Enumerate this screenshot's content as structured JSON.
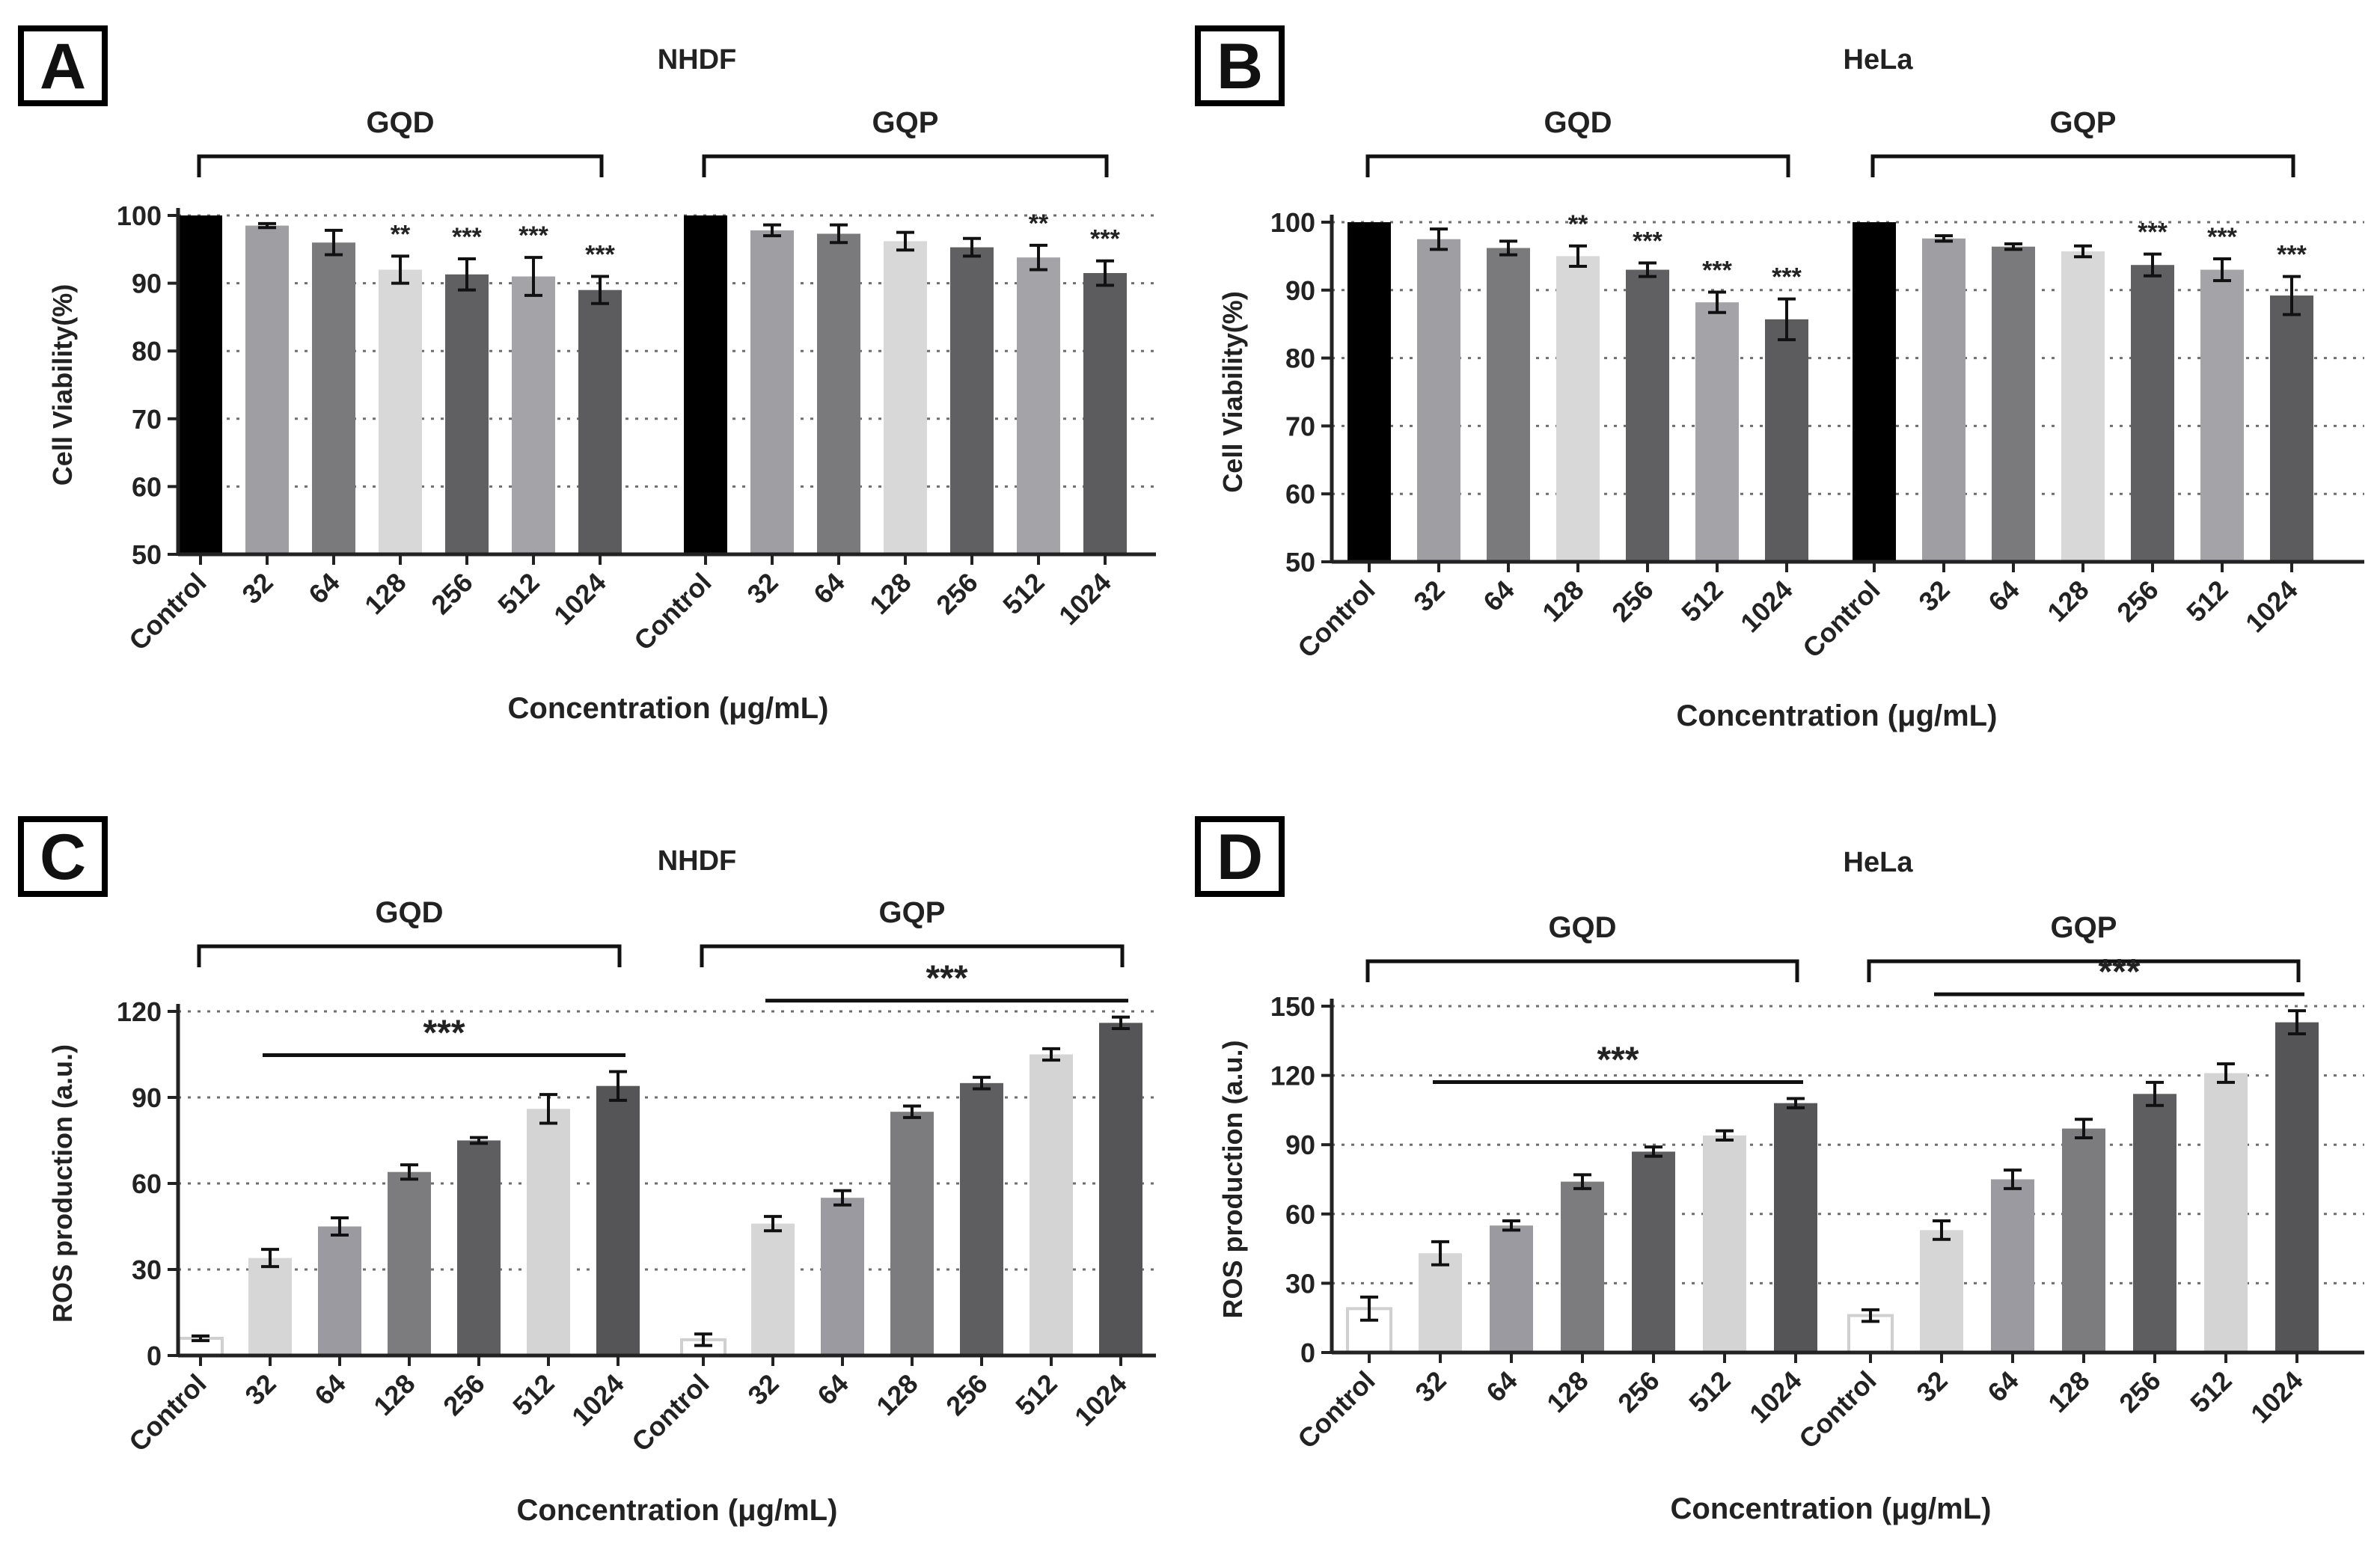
{
  "chart_data": [
    {
      "panel": "A",
      "type": "bar",
      "title": "NHDF",
      "xlabel": "Concentration (μg/mL)",
      "ylabel": "Cell Viability(%)",
      "ylim": [
        50,
        100
      ],
      "yticks": [
        50,
        60,
        70,
        80,
        90,
        100
      ],
      "groups": [
        {
          "name": "GQD",
          "categories": [
            "Control",
            "32",
            "64",
            "128",
            "256",
            "512",
            "1024"
          ],
          "values": [
            100,
            98.5,
            96,
            92,
            91.3,
            91,
            89
          ],
          "errors": [
            0,
            0.3,
            1.8,
            2.0,
            2.3,
            2.8,
            2.0
          ],
          "significance": [
            "",
            "",
            "",
            "**",
            "***",
            "***",
            "***"
          ]
        },
        {
          "name": "GQP",
          "categories": [
            "Control",
            "32",
            "64",
            "128",
            "256",
            "512",
            "1024"
          ],
          "values": [
            100,
            97.8,
            97.3,
            96.2,
            95.3,
            93.8,
            91.5
          ],
          "errors": [
            0,
            0.8,
            1.3,
            1.3,
            1.3,
            1.8,
            1.8
          ],
          "significance": [
            "",
            "",
            "",
            "",
            "",
            "**",
            "***"
          ]
        }
      ]
    },
    {
      "panel": "B",
      "type": "bar",
      "title": "HeLa",
      "xlabel": "Concentration (μg/mL)",
      "ylabel": "Cell Viability(%)",
      "ylim": [
        50,
        100
      ],
      "yticks": [
        50,
        60,
        70,
        80,
        90,
        100
      ],
      "groups": [
        {
          "name": "GQD",
          "categories": [
            "Control",
            "32",
            "64",
            "128",
            "256",
            "512",
            "1024"
          ],
          "values": [
            100,
            97.5,
            96.2,
            95,
            93,
            88.2,
            85.7
          ],
          "errors": [
            0,
            1.5,
            1.0,
            1.5,
            1.0,
            1.5,
            3.0
          ],
          "significance": [
            "",
            "",
            "",
            "**",
            "***",
            "***",
            "***"
          ]
        },
        {
          "name": "GQP",
          "categories": [
            "Control",
            "32",
            "64",
            "128",
            "256",
            "512",
            "1024"
          ],
          "values": [
            100,
            97.6,
            96.4,
            95.7,
            93.7,
            93,
            89.2
          ],
          "errors": [
            0,
            0.4,
            0.4,
            0.8,
            1.6,
            1.6,
            2.8
          ],
          "significance": [
            "",
            "",
            "",
            "",
            "***",
            "***",
            "***"
          ]
        }
      ]
    },
    {
      "panel": "C",
      "type": "bar",
      "title": "NHDF",
      "xlabel": "Concentration (μg/mL)",
      "ylabel": "ROS production (a.u.)",
      "ylim": [
        0,
        120
      ],
      "yticks": [
        0,
        30,
        60,
        90,
        120
      ],
      "groups": [
        {
          "name": "GQD",
          "categories": [
            "Control",
            "32",
            "64",
            "128",
            "256",
            "512",
            "1024"
          ],
          "values": [
            6,
            34,
            45,
            64,
            75,
            86,
            94
          ],
          "errors": [
            0.8,
            3,
            3,
            2.5,
            1,
            5,
            5
          ],
          "significance": [
            "",
            "",
            "",
            "",
            "",
            "",
            ""
          ],
          "bracket": {
            "label": "***",
            "from": 1,
            "to": 6
          }
        },
        {
          "name": "GQP",
          "categories": [
            "Control",
            "32",
            "64",
            "128",
            "256",
            "512",
            "1024"
          ],
          "values": [
            5.5,
            46,
            55,
            85,
            95,
            105,
            116
          ],
          "errors": [
            2,
            2.5,
            2.5,
            2,
            2,
            2,
            2
          ],
          "significance": [
            "",
            "",
            "",
            "",
            "",
            "",
            ""
          ],
          "bracket": {
            "label": "***",
            "from": 1,
            "to": 6
          }
        }
      ]
    },
    {
      "panel": "D",
      "type": "bar",
      "title": "HeLa",
      "xlabel": "Concentration (μg/mL)",
      "ylabel": "ROS production (a.u.)",
      "ylim": [
        0,
        150
      ],
      "yticks": [
        0,
        30,
        60,
        90,
        120,
        150
      ],
      "groups": [
        {
          "name": "GQD",
          "categories": [
            "Control",
            "32",
            "64",
            "128",
            "256",
            "512",
            "1024"
          ],
          "values": [
            19,
            43,
            55,
            74,
            87,
            94,
            108
          ],
          "errors": [
            5,
            5,
            2,
            3,
            2,
            2,
            2
          ],
          "significance": [
            "",
            "",
            "",
            "",
            "",
            "",
            ""
          ],
          "bracket": {
            "label": "***",
            "from": 1,
            "to": 6
          }
        },
        {
          "name": "GQP",
          "categories": [
            "Control",
            "32",
            "64",
            "128",
            "256",
            "512",
            "1024"
          ],
          "values": [
            16,
            53,
            75,
            97,
            112,
            121,
            143
          ],
          "errors": [
            2.5,
            4,
            4,
            4,
            5,
            4,
            5
          ],
          "significance": [
            "",
            "",
            "",
            "",
            "",
            "",
            ""
          ],
          "bracket": {
            "label": "***",
            "from": 1,
            "to": 6
          }
        }
      ]
    }
  ],
  "colors": {
    "viability": [
      "#000000",
      "#9e9ea3",
      "#7a7a7c",
      "#d8d8d8",
      "#606062",
      "#a3a3a8",
      "#5c5c5e"
    ],
    "ros": [
      "#ffffff",
      "#d6d6d6",
      "#9a9aa0",
      "#7c7c7e",
      "#5e5e60",
      "#d4d4d4",
      "#555557"
    ],
    "axis": "#222222",
    "grid": "#6e6e6e"
  }
}
